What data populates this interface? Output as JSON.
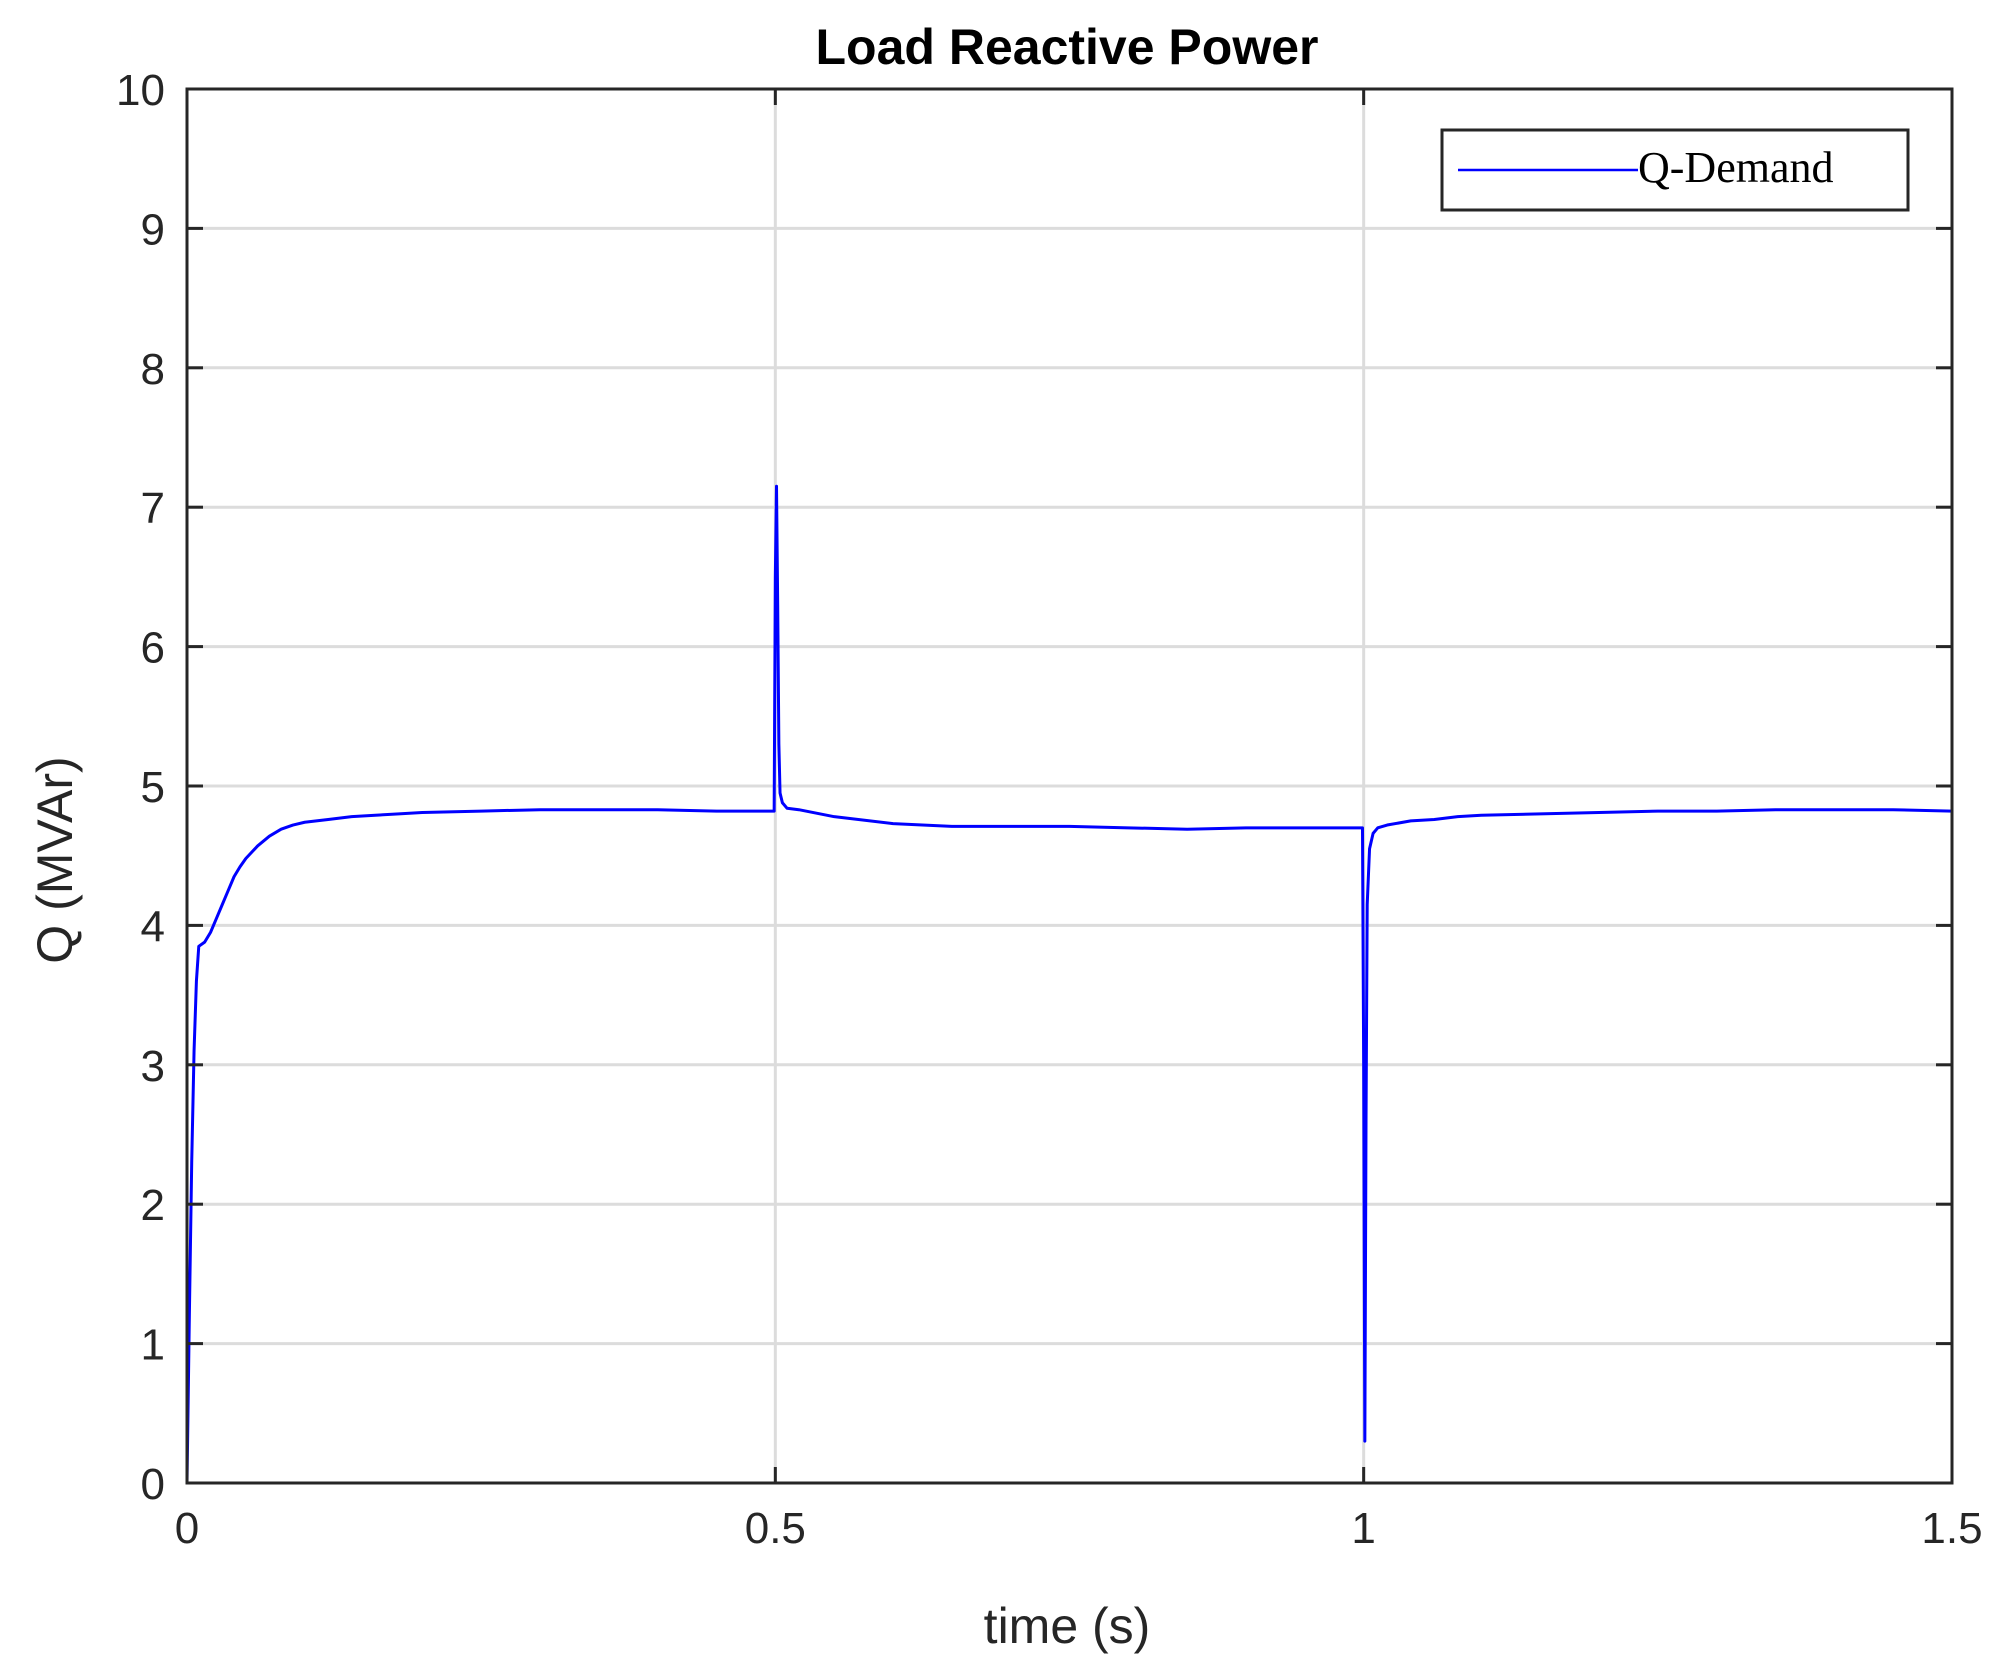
{
  "chart_data": {
    "type": "line",
    "title": "Load Reactive Power",
    "xlabel": "time (s)",
    "ylabel": "Q (MVAr)",
    "xlim": [
      0,
      1.5
    ],
    "ylim": [
      0,
      10
    ],
    "xticks": [
      0,
      0.5,
      1,
      1.5
    ],
    "xtick_labels": [
      "0",
      "0.5",
      "1",
      "1.5"
    ],
    "yticks": [
      0,
      1,
      2,
      3,
      4,
      5,
      6,
      7,
      8,
      9,
      10
    ],
    "ytick_labels": [
      "0",
      "1",
      "2",
      "3",
      "4",
      "5",
      "6",
      "7",
      "8",
      "9",
      "10"
    ],
    "grid": true,
    "legend_position": "top-right",
    "series": [
      {
        "name": "Q-Demand",
        "color": "#0000ff",
        "x": [
          0,
          0.002,
          0.004,
          0.006,
          0.008,
          0.01,
          0.015,
          0.02,
          0.025,
          0.03,
          0.035,
          0.04,
          0.045,
          0.05,
          0.06,
          0.07,
          0.08,
          0.09,
          0.1,
          0.12,
          0.14,
          0.16,
          0.18,
          0.2,
          0.25,
          0.3,
          0.35,
          0.4,
          0.45,
          0.499,
          0.5,
          0.501,
          0.502,
          0.503,
          0.504,
          0.506,
          0.51,
          0.52,
          0.55,
          0.6,
          0.65,
          0.7,
          0.75,
          0.8,
          0.85,
          0.9,
          0.95,
          0.999,
          1.0,
          1.001,
          1.002,
          1.003,
          1.005,
          1.008,
          1.012,
          1.02,
          1.04,
          1.06,
          1.08,
          1.1,
          1.15,
          1.2,
          1.25,
          1.3,
          1.35,
          1.4,
          1.45,
          1.5
        ],
        "y": [
          0,
          1.2,
          2.3,
          3.1,
          3.6,
          3.85,
          3.88,
          3.95,
          4.05,
          4.15,
          4.25,
          4.35,
          4.42,
          4.48,
          4.57,
          4.64,
          4.69,
          4.72,
          4.74,
          4.76,
          4.78,
          4.79,
          4.8,
          4.81,
          4.82,
          4.83,
          4.83,
          4.83,
          4.82,
          4.82,
          6.5,
          7.15,
          6.3,
          5.3,
          4.95,
          4.88,
          4.84,
          4.83,
          4.78,
          4.73,
          4.71,
          4.71,
          4.71,
          4.7,
          4.69,
          4.7,
          4.7,
          4.7,
          3.0,
          0.3,
          2.6,
          4.15,
          4.55,
          4.66,
          4.7,
          4.72,
          4.75,
          4.76,
          4.78,
          4.79,
          4.8,
          4.81,
          4.82,
          4.82,
          4.83,
          4.83,
          4.83,
          4.82
        ]
      }
    ]
  }
}
